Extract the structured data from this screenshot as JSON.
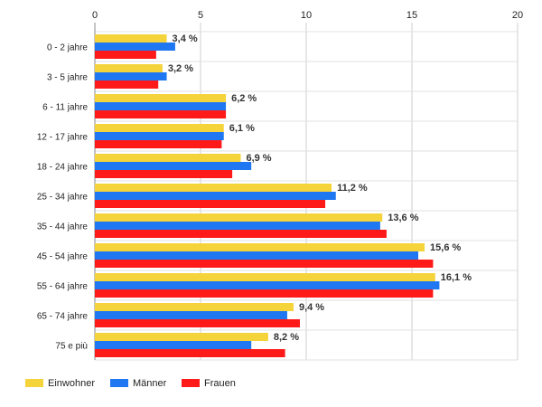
{
  "chart_data": {
    "type": "bar",
    "orientation": "horizontal",
    "categories": [
      "0 - 2 jahre",
      "3 - 5 jahre",
      "6 - 11 jahre",
      "12 - 17 jahre",
      "18 - 24 jahre",
      "25 - 34 jahre",
      "35 - 44 jahre",
      "45 - 54 jahre",
      "55 - 64 jahre",
      "65 - 74 jahre",
      "75 e più"
    ],
    "series": [
      {
        "name": "Einwohner",
        "color": "#f5d33a",
        "values": [
          3.4,
          3.2,
          6.2,
          6.1,
          6.9,
          11.2,
          13.6,
          15.6,
          16.1,
          9.4,
          8.2
        ]
      },
      {
        "name": "Männer",
        "color": "#1f78f2",
        "values": [
          3.8,
          3.4,
          6.2,
          6.1,
          7.4,
          11.4,
          13.5,
          15.3,
          16.3,
          9.1,
          7.4
        ]
      },
      {
        "name": "Frauen",
        "color": "#ff1a1a",
        "values": [
          2.9,
          3.0,
          6.2,
          6.0,
          6.5,
          10.9,
          13.8,
          16.0,
          16.0,
          9.7,
          9.0
        ]
      }
    ],
    "data_labels": [
      "3,4 %",
      "3,2 %",
      "6,2 %",
      "6,1 %",
      "6,9 %",
      "11,2 %",
      "13,6 %",
      "15,6 %",
      "16,1 %",
      "9,4 %",
      "8,2 %"
    ],
    "xlim": [
      0,
      20
    ],
    "xticks": [
      "0",
      "5",
      "10",
      "15",
      "20"
    ],
    "xaxis_position": "top",
    "grid": true,
    "legend_placement": "bottom-left",
    "title": "",
    "xlabel": "",
    "ylabel": ""
  }
}
